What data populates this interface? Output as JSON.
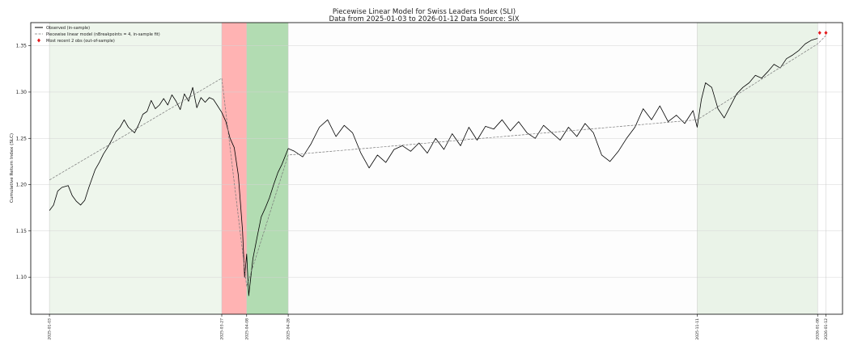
{
  "chart_data": {
    "type": "line",
    "title": "Piecewise Linear Model for Swiss Leaders Index (SLI)",
    "subtitle": "Data from 2025-01-03 to 2026-01-12 Data Source: SIX",
    "ylabel": "Cumulative Return Index (SLC)",
    "xlabel": "",
    "ylim": [
      1.06,
      1.375
    ],
    "yticks": [
      1.1,
      1.15,
      1.2,
      1.25,
      1.3,
      1.35
    ],
    "ytick_labels": [
      "1.10",
      "1.15",
      "1.20",
      "1.25",
      "1.30",
      "1.35"
    ],
    "xlim": [
      "2024-12-25",
      "2026-01-20"
    ],
    "xticks": [
      "2025-01-03",
      "2025-03-27",
      "2025-04-08",
      "2025-04-28",
      "2025-11-11",
      "2026-01-08",
      "2026-01-12"
    ],
    "grid": true,
    "legend_position": "top-left",
    "legend": [
      {
        "label": "Observed (in-sample)",
        "style": "solid",
        "color": "#000000"
      },
      {
        "label": "Piecewise linear model (nBreakpoints = 4, in-sample fit)",
        "style": "dashed",
        "color": "#777777"
      },
      {
        "label": "Most recent 2 obs (out-of-sample)",
        "style": "marker",
        "color": "#e41a1c"
      }
    ],
    "regions": [
      {
        "start": "2025-01-03",
        "end": "2025-03-27",
        "color": "#eef6ec"
      },
      {
        "start": "2025-03-27",
        "end": "2025-04-08",
        "color": "#ffb3b3"
      },
      {
        "start": "2025-04-08",
        "end": "2025-04-28",
        "color": "#b2dcb2"
      },
      {
        "start": "2025-04-28",
        "end": "2025-11-11",
        "color": "#fdfdfd"
      },
      {
        "start": "2025-11-11",
        "end": "2026-01-08",
        "color": "#eaf3e8"
      }
    ],
    "series": [
      {
        "name": "Observed (in-sample)",
        "x": [
          "2025-01-03",
          "2025-01-05",
          "2025-01-07",
          "2025-01-09",
          "2025-01-12",
          "2025-01-14",
          "2025-01-16",
          "2025-01-18",
          "2025-01-20",
          "2025-01-22",
          "2025-01-25",
          "2025-01-27",
          "2025-01-29",
          "2025-01-31",
          "2025-02-02",
          "2025-02-04",
          "2025-02-06",
          "2025-02-08",
          "2025-02-10",
          "2025-02-13",
          "2025-02-15",
          "2025-02-17",
          "2025-02-19",
          "2025-02-21",
          "2025-02-23",
          "2025-02-25",
          "2025-02-27",
          "2025-03-01",
          "2025-03-03",
          "2025-03-05",
          "2025-03-07",
          "2025-03-09",
          "2025-03-11",
          "2025-03-13",
          "2025-03-15",
          "2025-03-17",
          "2025-03-19",
          "2025-03-21",
          "2025-03-23",
          "2025-03-25",
          "2025-03-27",
          "2025-03-29",
          "2025-03-31",
          "2025-04-02",
          "2025-04-04",
          "2025-04-06",
          "2025-04-07",
          "2025-04-08",
          "2025-04-09",
          "2025-04-11",
          "2025-04-13",
          "2025-04-15",
          "2025-04-17",
          "2025-04-19",
          "2025-04-21",
          "2025-04-23",
          "2025-04-25",
          "2025-04-28",
          "2025-05-01",
          "2025-05-05",
          "2025-05-09",
          "2025-05-13",
          "2025-05-17",
          "2025-05-21",
          "2025-05-25",
          "2025-05-29",
          "2025-06-02",
          "2025-06-06",
          "2025-06-10",
          "2025-06-14",
          "2025-06-18",
          "2025-06-22",
          "2025-06-26",
          "2025-06-30",
          "2025-07-04",
          "2025-07-08",
          "2025-07-12",
          "2025-07-16",
          "2025-07-20",
          "2025-07-24",
          "2025-07-28",
          "2025-08-01",
          "2025-08-05",
          "2025-08-09",
          "2025-08-13",
          "2025-08-17",
          "2025-08-21",
          "2025-08-25",
          "2025-08-29",
          "2025-09-02",
          "2025-09-06",
          "2025-09-10",
          "2025-09-14",
          "2025-09-18",
          "2025-09-22",
          "2025-09-26",
          "2025-09-30",
          "2025-10-04",
          "2025-10-08",
          "2025-10-12",
          "2025-10-16",
          "2025-10-20",
          "2025-10-24",
          "2025-10-28",
          "2025-11-01",
          "2025-11-05",
          "2025-11-09",
          "2025-11-11",
          "2025-11-13",
          "2025-11-15",
          "2025-11-18",
          "2025-11-21",
          "2025-11-24",
          "2025-11-27",
          "2025-11-30",
          "2025-12-03",
          "2025-12-06",
          "2025-12-09",
          "2025-12-12",
          "2025-12-15",
          "2025-12-18",
          "2025-12-21",
          "2025-12-24",
          "2025-12-27",
          "2025-12-30",
          "2026-01-02",
          "2026-01-05",
          "2026-01-08"
        ],
        "y": [
          1.172,
          1.178,
          1.193,
          1.197,
          1.199,
          1.188,
          1.182,
          1.178,
          1.183,
          1.197,
          1.216,
          1.224,
          1.233,
          1.24,
          1.248,
          1.257,
          1.262,
          1.27,
          1.262,
          1.256,
          1.265,
          1.276,
          1.279,
          1.291,
          1.282,
          1.286,
          1.293,
          1.286,
          1.297,
          1.29,
          1.281,
          1.298,
          1.29,
          1.305,
          1.283,
          1.294,
          1.289,
          1.294,
          1.292,
          1.285,
          1.278,
          1.268,
          1.25,
          1.24,
          1.21,
          1.15,
          1.1,
          1.125,
          1.08,
          1.12,
          1.143,
          1.165,
          1.175,
          1.186,
          1.2,
          1.213,
          1.222,
          1.239,
          1.236,
          1.23,
          1.244,
          1.262,
          1.27,
          1.252,
          1.264,
          1.256,
          1.234,
          1.218,
          1.232,
          1.224,
          1.238,
          1.242,
          1.236,
          1.245,
          1.234,
          1.25,
          1.238,
          1.255,
          1.242,
          1.262,
          1.248,
          1.263,
          1.26,
          1.27,
          1.258,
          1.268,
          1.256,
          1.25,
          1.264,
          1.256,
          1.248,
          1.262,
          1.252,
          1.266,
          1.256,
          1.232,
          1.225,
          1.236,
          1.25,
          1.262,
          1.282,
          1.27,
          1.285,
          1.268,
          1.275,
          1.266,
          1.28,
          1.262,
          1.292,
          1.31,
          1.305,
          1.282,
          1.272,
          1.285,
          1.298,
          1.305,
          1.31,
          1.318,
          1.315,
          1.322,
          1.33,
          1.326,
          1.336,
          1.34,
          1.345,
          1.352,
          1.356,
          1.358
        ]
      },
      {
        "name": "Piecewise linear model (nBreakpoints = 4, in-sample fit)",
        "x": [
          "2025-01-03",
          "2025-03-27",
          "2025-04-08",
          "2025-04-28",
          "2025-11-11",
          "2026-01-08",
          "2026-01-12"
        ],
        "y": [
          1.205,
          1.315,
          1.09,
          1.232,
          1.27,
          1.352,
          1.361
        ]
      },
      {
        "name": "Most recent 2 obs (out-of-sample)",
        "x": [
          "2026-01-09",
          "2026-01-12"
        ],
        "y": [
          1.364,
          1.364
        ]
      }
    ]
  }
}
